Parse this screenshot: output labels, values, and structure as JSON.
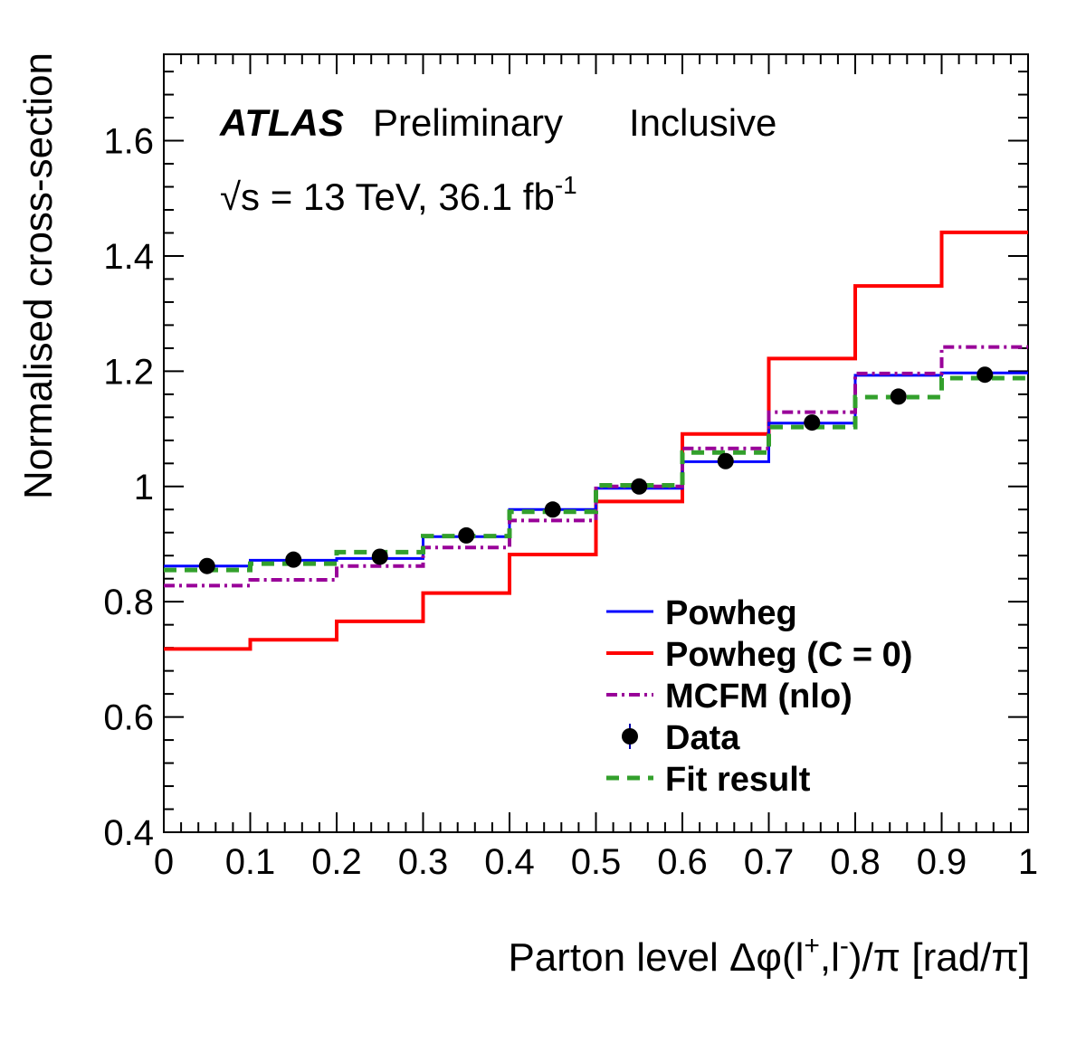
{
  "chart_data": {
    "type": "line",
    "experiment": "ATLAS",
    "status": "Preliminary",
    "region": "Inclusive",
    "energy_label": "√s = 13 TeV, 36.1 fb",
    "energy_exponent": "-1",
    "xlabel": "Parton level Δφ(l",
    "xlabel_sup1": "+",
    "xlabel_mid": ",l",
    "xlabel_sup2": "-",
    "xlabel_end": ")/π [rad/π]",
    "ylabel": "Normalised cross-section",
    "xlim": [
      0,
      1
    ],
    "ylim": [
      0.4,
      1.75
    ],
    "x_ticks": [
      "0",
      "0.1",
      "0.2",
      "0.3",
      "0.4",
      "0.5",
      "0.6",
      "0.7",
      "0.8",
      "0.9",
      "1"
    ],
    "y_ticks": [
      "0.4",
      "0.6",
      "0.8",
      "1",
      "1.2",
      "1.4",
      "1.6"
    ],
    "bin_edges": [
      0,
      0.1,
      0.2,
      0.3,
      0.4,
      0.5,
      0.6,
      0.7,
      0.8,
      0.9,
      1.0
    ],
    "series": [
      {
        "name": "Powheg",
        "style": "step",
        "color": "#0000ff",
        "dash": "solid",
        "values": [
          0.862,
          0.872,
          0.875,
          0.913,
          0.96,
          0.997,
          1.043,
          1.11,
          1.193,
          1.197
        ]
      },
      {
        "name": "Powheg (C = 0)",
        "style": "step",
        "color": "#ff0000",
        "dash": "solid",
        "values": [
          0.718,
          0.734,
          0.766,
          0.815,
          0.882,
          0.974,
          1.091,
          1.222,
          1.348,
          1.441
        ]
      },
      {
        "name": "MCFM (nlo)",
        "style": "step",
        "color": "#990099",
        "dash": "dashdot",
        "values": [
          0.828,
          0.838,
          0.862,
          0.894,
          0.941,
          1.0,
          1.066,
          1.129,
          1.196,
          1.242
        ]
      },
      {
        "name": "Data",
        "style": "points",
        "color": "#000000",
        "dash": "none",
        "x": [
          0.05,
          0.15,
          0.25,
          0.35,
          0.45,
          0.55,
          0.65,
          0.75,
          0.85,
          0.95
        ],
        "values": [
          0.862,
          0.873,
          0.878,
          0.915,
          0.96,
          1.0,
          1.044,
          1.111,
          1.156,
          1.194
        ]
      },
      {
        "name": "Fit result",
        "style": "step",
        "color": "#33a02c",
        "dash": "dashed",
        "values": [
          0.855,
          0.866,
          0.886,
          0.914,
          0.956,
          1.002,
          1.059,
          1.103,
          1.155,
          1.188
        ]
      }
    ],
    "legend_position": "bottom-right",
    "grid": false
  }
}
